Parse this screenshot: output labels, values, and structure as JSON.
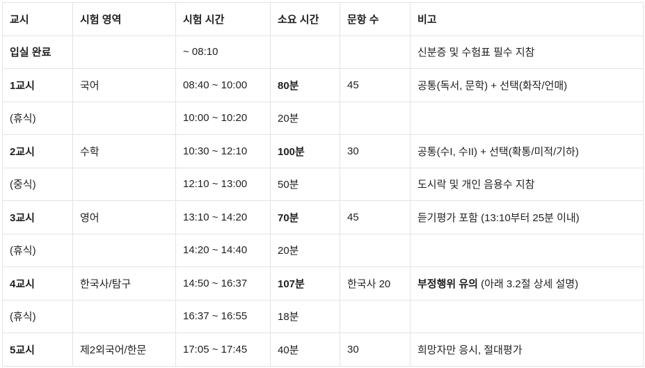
{
  "headers": [
    "교시",
    "시험 영역",
    "시험 시간",
    "소요 시간",
    "문항 수",
    "비고"
  ],
  "rows": [
    {
      "period": "입실 완료",
      "period_bold": true,
      "subject": "",
      "time": "~ 08:10",
      "duration": "",
      "duration_bold": false,
      "questions": "",
      "note_bold": "",
      "note": "신분증 및 수험표 필수 지참"
    },
    {
      "period": "1교시",
      "period_bold": true,
      "subject": "국어",
      "time": "08:40 ~ 10:00",
      "duration": "80분",
      "duration_bold": true,
      "questions": "45",
      "note_bold": "",
      "note": "공통(독서, 문학) + 선택(화작/언매)"
    },
    {
      "period": "(휴식)",
      "period_bold": false,
      "subject": "",
      "time": "10:00 ~ 10:20",
      "duration": "20분",
      "duration_bold": false,
      "questions": "",
      "note_bold": "",
      "note": ""
    },
    {
      "period": "2교시",
      "period_bold": true,
      "subject": "수학",
      "time": "10:30 ~ 12:10",
      "duration": "100분",
      "duration_bold": true,
      "questions": "30",
      "note_bold": "",
      "note": "공통(수I, 수II) + 선택(확통/미적/기하)"
    },
    {
      "period": "(중식)",
      "period_bold": false,
      "subject": "",
      "time": "12:10 ~ 13:00",
      "duration": "50분",
      "duration_bold": false,
      "questions": "",
      "note_bold": "",
      "note": "도시락 및 개인 음용수 지참"
    },
    {
      "period": "3교시",
      "period_bold": true,
      "subject": "영어",
      "time": "13:10 ~ 14:20",
      "duration": "70분",
      "duration_bold": true,
      "questions": "45",
      "note_bold": "",
      "note": "듣기평가 포함 (13:10부터 25분 이내)"
    },
    {
      "period": "(휴식)",
      "period_bold": false,
      "subject": "",
      "time": "14:20 ~ 14:40",
      "duration": "20분",
      "duration_bold": false,
      "questions": "",
      "note_bold": "",
      "note": ""
    },
    {
      "period": "4교시",
      "period_bold": true,
      "subject": "한국사/탐구",
      "time": "14:50 ~ 16:37",
      "duration": "107분",
      "duration_bold": true,
      "questions": "한국사 20",
      "note_bold": "부정행위 유의",
      "note": " (아래 3.2절 상세 설명)"
    },
    {
      "period": "(휴식)",
      "period_bold": false,
      "subject": "",
      "time": "16:37 ~ 16:55",
      "duration": "18분",
      "duration_bold": false,
      "questions": "",
      "note_bold": "",
      "note": ""
    },
    {
      "period": "5교시",
      "period_bold": true,
      "subject": "제2외국어/한문",
      "time": "17:05 ~ 17:45",
      "duration": "40분",
      "duration_bold": false,
      "questions": "30",
      "note_bold": "",
      "note": "희망자만 응시, 절대평가"
    }
  ]
}
